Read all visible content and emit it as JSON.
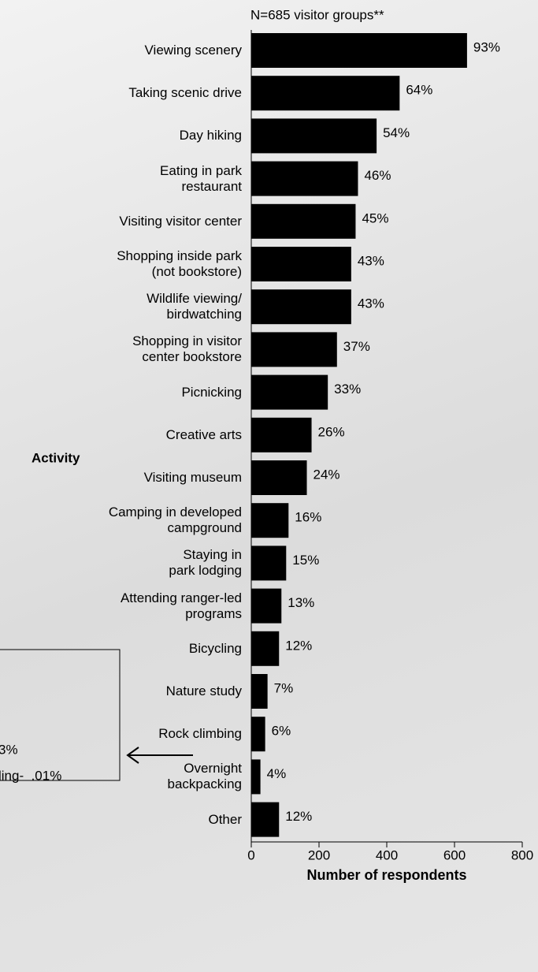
{
  "chart_data": {
    "type": "hbar",
    "subtitle": "N=685 visitor groups**",
    "y_axis_label": "Activity",
    "x_axis_label": "Number of respondents",
    "categories": [
      "Viewing scenery",
      "Taking scenic drive",
      "Day hiking",
      "Eating in park\nrestaurant",
      "Visiting visitor center",
      "Shopping inside park\n(not bookstore)",
      "Wildlife viewing/\nbirdwatching",
      "Shopping in visitor\ncenter bookstore",
      "Picnicking",
      "Creative arts",
      "Visiting museum",
      "Camping in developed\ncampground",
      "Staying in\npark lodging",
      "Attending ranger-led\nprograms",
      "Bicycling",
      "Nature study",
      "Rock climbing",
      "Overnight\nbackpacking",
      "Other"
    ],
    "values": [
      637,
      438,
      370,
      315,
      308,
      295,
      295,
      253,
      226,
      178,
      164,
      110,
      103,
      89,
      82,
      48,
      41,
      27,
      82
    ],
    "value_labels": [
      "93%",
      "64%",
      "54%",
      "46%",
      "45%",
      "43%",
      "43%",
      "37%",
      "33%",
      "26%",
      "24%",
      "16%",
      "15%",
      "13%",
      "12%",
      "7%",
      "6%",
      "4%",
      "12%"
    ],
    "color": "#000000",
    "xlim": [
      0,
      800
    ],
    "xticks": [
      0,
      200,
      400,
      600,
      800
    ],
    "annotations": [
      "3%",
      "ling-  .01%"
    ]
  }
}
